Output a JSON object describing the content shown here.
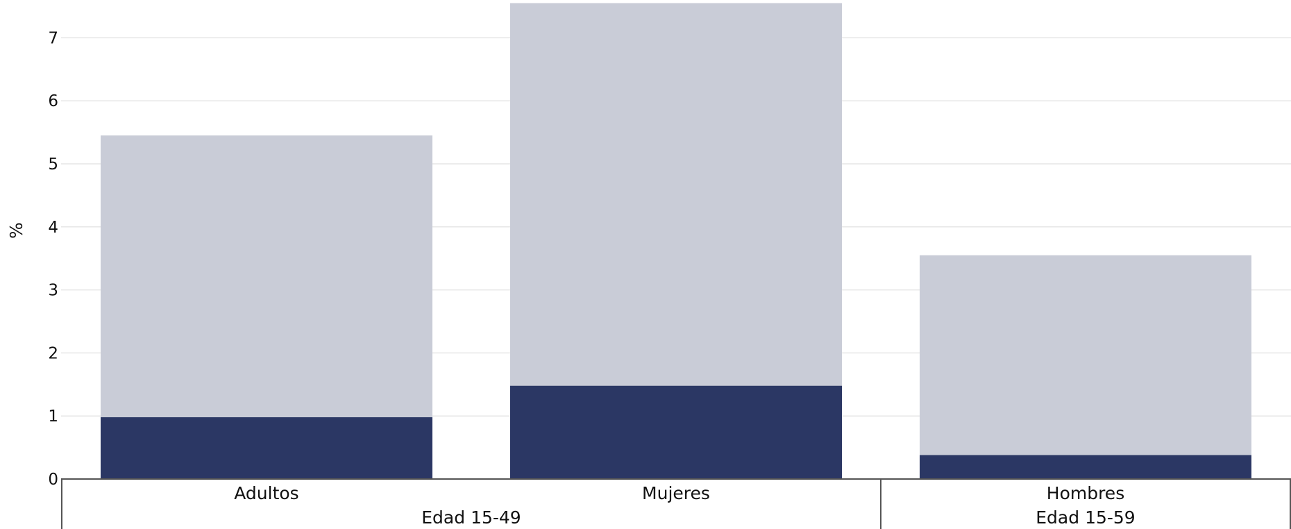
{
  "chart_data": {
    "type": "bar",
    "stacked": true,
    "ylabel": "%",
    "ylim": [
      0,
      7.5
    ],
    "yticks": [
      0,
      1,
      2,
      3,
      4,
      5,
      6,
      7
    ],
    "grid": true,
    "categories": [
      "Adultos",
      "Mujeres",
      "Hombres"
    ],
    "groups": [
      {
        "label": "Edad 15-49",
        "categories": [
          "Adultos",
          "Mujeres"
        ]
      },
      {
        "label": "Edad 15-59",
        "categories": [
          "Hombres"
        ]
      }
    ],
    "series": [
      {
        "values": [
          0.98,
          1.48,
          0.38
        ],
        "color": "#2b3764"
      },
      {
        "values": [
          4.47,
          6.07,
          3.17
        ],
        "color": "#c9ccd7"
      }
    ],
    "totals": [
      5.45,
      7.55,
      3.55
    ]
  }
}
